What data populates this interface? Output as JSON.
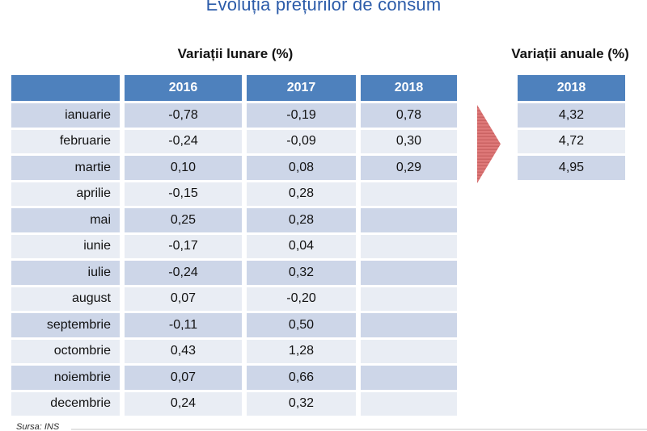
{
  "title": "Evoluția prețurilor de consum",
  "monthly": {
    "heading": "Variații lunare (%)",
    "columns": [
      "2016",
      "2017",
      "2018"
    ],
    "rows": [
      {
        "month": "ianuarie",
        "y2016": "-0,78",
        "y2017": "-0,19",
        "y2018": "0,78"
      },
      {
        "month": "februarie",
        "y2016": "-0,24",
        "y2017": "-0,09",
        "y2018": "0,30"
      },
      {
        "month": "martie",
        "y2016": "0,10",
        "y2017": "0,08",
        "y2018": "0,29"
      },
      {
        "month": "aprilie",
        "y2016": "-0,15",
        "y2017": "0,28",
        "y2018": ""
      },
      {
        "month": "mai",
        "y2016": "0,25",
        "y2017": "0,28",
        "y2018": ""
      },
      {
        "month": "iunie",
        "y2016": "-0,17",
        "y2017": "0,04",
        "y2018": ""
      },
      {
        "month": "iulie",
        "y2016": "-0,24",
        "y2017": "0,32",
        "y2018": ""
      },
      {
        "month": "august",
        "y2016": "0,07",
        "y2017": "-0,20",
        "y2018": ""
      },
      {
        "month": "septembrie",
        "y2016": "-0,11",
        "y2017": "0,50",
        "y2018": ""
      },
      {
        "month": "octombrie",
        "y2016": "0,43",
        "y2017": "1,28",
        "y2018": ""
      },
      {
        "month": "noiembrie",
        "y2016": "0,07",
        "y2017": "0,66",
        "y2018": ""
      },
      {
        "month": "decembrie",
        "y2016": "0,24",
        "y2017": "0,32",
        "y2018": ""
      }
    ]
  },
  "annual": {
    "heading": "Variații anuale (%)",
    "column": "2018",
    "values": [
      "4,32",
      "4,72",
      "4,95"
    ]
  },
  "source": "Sursa: INS",
  "colors": {
    "title_blue": "#2B5BA9",
    "header_blue": "#4E81BD",
    "row_dark": "#CDD6E8",
    "row_light": "#E9EDF4",
    "arrow_light": "#DE7878",
    "arrow_dark": "#CB6363"
  },
  "chart_data": [
    {
      "type": "table",
      "title": "Variații lunare (%)",
      "categories": [
        "ianuarie",
        "februarie",
        "martie",
        "aprilie",
        "mai",
        "iunie",
        "iulie",
        "august",
        "septembrie",
        "octombrie",
        "noiembrie",
        "decembrie"
      ],
      "series": [
        {
          "name": "2016",
          "values": [
            -0.78,
            -0.24,
            0.1,
            -0.15,
            0.25,
            -0.17,
            -0.24,
            0.07,
            -0.11,
            0.43,
            0.07,
            0.24
          ]
        },
        {
          "name": "2017",
          "values": [
            -0.19,
            -0.09,
            0.08,
            0.28,
            0.28,
            0.04,
            0.32,
            -0.2,
            0.5,
            1.28,
            0.66,
            0.32
          ]
        },
        {
          "name": "2018",
          "values": [
            0.78,
            0.3,
            0.29,
            null,
            null,
            null,
            null,
            null,
            null,
            null,
            null,
            null
          ]
        }
      ]
    },
    {
      "type": "table",
      "title": "Variații anuale (%)",
      "categories": [
        "ianuarie",
        "februarie",
        "martie"
      ],
      "series": [
        {
          "name": "2018",
          "values": [
            4.32,
            4.72,
            4.95
          ]
        }
      ]
    }
  ]
}
